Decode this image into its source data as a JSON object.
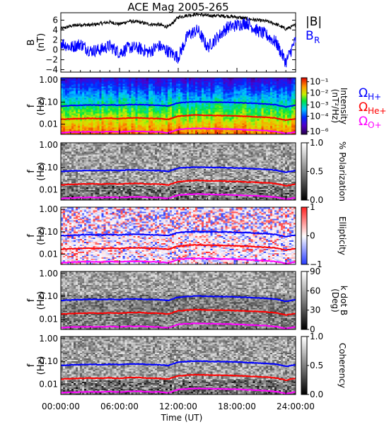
{
  "chart_data": [
    {
      "type": "line",
      "title": "ACE Mag 2005-265",
      "ylabel": "B\n(nT)",
      "ylabel_lines": [
        "B",
        "(nT)"
      ],
      "ylim": [
        -4.5,
        7.5
      ],
      "yticks": [
        -4,
        -2,
        0,
        2,
        4,
        6
      ],
      "xlim": [
        0,
        24
      ],
      "series": [
        {
          "name": "|B|",
          "color": "#000000",
          "x": [
            0,
            1,
            2,
            3,
            4,
            5,
            6,
            7,
            8,
            9,
            10,
            11,
            12,
            13,
            14,
            15,
            16,
            17,
            18,
            19,
            20,
            21,
            22,
            23,
            24
          ],
          "y": [
            4.2,
            4.8,
            5.1,
            5.0,
            5.3,
            5.6,
            5.2,
            5.8,
            5.6,
            5.2,
            5.1,
            4.6,
            6.6,
            7.0,
            7.2,
            6.9,
            6.9,
            6.8,
            6.6,
            6.3,
            6.0,
            5.8,
            5.2,
            4.2,
            5.0
          ]
        },
        {
          "name": "B_R",
          "color": "#0000ff",
          "x": [
            0,
            1,
            2,
            3,
            4,
            5,
            6,
            7,
            8,
            9,
            10,
            11,
            12,
            13,
            14,
            15,
            16,
            17,
            18,
            19,
            20,
            21,
            22,
            23,
            24
          ],
          "y": [
            1.5,
            0.5,
            1.2,
            -0.2,
            0.0,
            0.8,
            -0.6,
            0.5,
            0.3,
            -0.5,
            0.8,
            -0.3,
            -1.5,
            3.0,
            4.0,
            0.5,
            2.5,
            4.5,
            5.0,
            5.5,
            4.0,
            3.0,
            1.5,
            -2.5,
            2.0
          ]
        }
      ]
    },
    {
      "type": "heatmap",
      "ylabel_lines": [
        "f",
        "(Hz)"
      ],
      "yticks": [
        "0.01",
        "0.10",
        "1.00"
      ],
      "colorbar_label_lines": [
        "Intensity",
        "(nT²/Hz)"
      ],
      "colorbar_ticks": [
        "10⁻⁶",
        "10⁻⁴",
        "10⁻³",
        "10⁻²",
        "10⁻¹"
      ],
      "colormap": "rainbow",
      "legend": [
        {
          "name": "ΩH+",
          "base": "Ω",
          "sub": "H+",
          "color": "#0000ff"
        },
        {
          "name": "ΩHe+",
          "base": "Ω",
          "sub": "He+",
          "color": "#ff0000"
        },
        {
          "name": "ΩO+",
          "base": "Ω",
          "sub": "O+",
          "color": "#ff00ff"
        }
      ]
    },
    {
      "type": "heatmap",
      "ylabel_lines": [
        "f",
        "(Hz)"
      ],
      "yticks": [
        "0.01",
        "0.10",
        "1.00"
      ],
      "colorbar_label_lines": [
        "% Polarization"
      ],
      "colorbar_ticks": [
        "0.0",
        "0.5",
        "1.0"
      ],
      "colormap": "grayscale"
    },
    {
      "type": "heatmap",
      "ylabel_lines": [
        "f",
        "(Hz)"
      ],
      "yticks": [
        "0.01",
        "0.10",
        "1.00"
      ],
      "colorbar_label_lines": [
        "Ellipticity"
      ],
      "colorbar_ticks": [
        "−1",
        "0",
        "1"
      ],
      "colormap": "blue-white-red"
    },
    {
      "type": "heatmap",
      "ylabel_lines": [
        "f",
        "(Hz)"
      ],
      "yticks": [
        "0.01",
        "0.10",
        "1.00"
      ],
      "colorbar_label_lines": [
        "k dot B",
        "(Deg)"
      ],
      "colorbar_ticks": [
        "0",
        "30",
        "60",
        "90"
      ],
      "colormap": "grayscale"
    },
    {
      "type": "heatmap",
      "ylabel_lines": [
        "f",
        "(Hz)"
      ],
      "yticks": [
        "0.01",
        "0.10",
        "1.00"
      ],
      "colorbar_label_lines": [
        "Coherency"
      ],
      "colorbar_ticks": [
        "0.0",
        "0.5",
        "1.0"
      ],
      "colormap": "grayscale",
      "xlabel": "Time (UT)",
      "xticks": [
        "00:00:00",
        "06:00:00",
        "12:00:00",
        "18:00:00",
        "24:00:00"
      ]
    }
  ],
  "gyrofrequency_lines": {
    "x": [
      0,
      1,
      2,
      3,
      4,
      5,
      6,
      7,
      8,
      9,
      10,
      11,
      12,
      13,
      14,
      15,
      16,
      17,
      18,
      19,
      20,
      21,
      22,
      23,
      24
    ],
    "H+": [
      0.066,
      0.07,
      0.072,
      0.074,
      0.072,
      0.075,
      0.072,
      0.077,
      0.077,
      0.073,
      0.072,
      0.066,
      0.092,
      0.1,
      0.104,
      0.1,
      0.099,
      0.097,
      0.094,
      0.09,
      0.086,
      0.082,
      0.075,
      0.06,
      0.072
    ],
    "He+": [
      0.0165,
      0.0175,
      0.018,
      0.0185,
      0.018,
      0.0188,
      0.018,
      0.0193,
      0.0193,
      0.0183,
      0.018,
      0.0165,
      0.023,
      0.025,
      0.026,
      0.025,
      0.0248,
      0.0243,
      0.0235,
      0.0225,
      0.0215,
      0.0205,
      0.0188,
      0.015,
      0.018
    ],
    "O+": [
      0.0041,
      0.0044,
      0.0045,
      0.0046,
      0.0045,
      0.0047,
      0.0045,
      0.0048,
      0.0048,
      0.0046,
      0.0045,
      0.0041,
      0.0058,
      0.0063,
      0.0065,
      0.0063,
      0.0062,
      0.0061,
      0.0059,
      0.0056,
      0.0054,
      0.0051,
      0.0047,
      0.0038,
      0.0045
    ]
  }
}
